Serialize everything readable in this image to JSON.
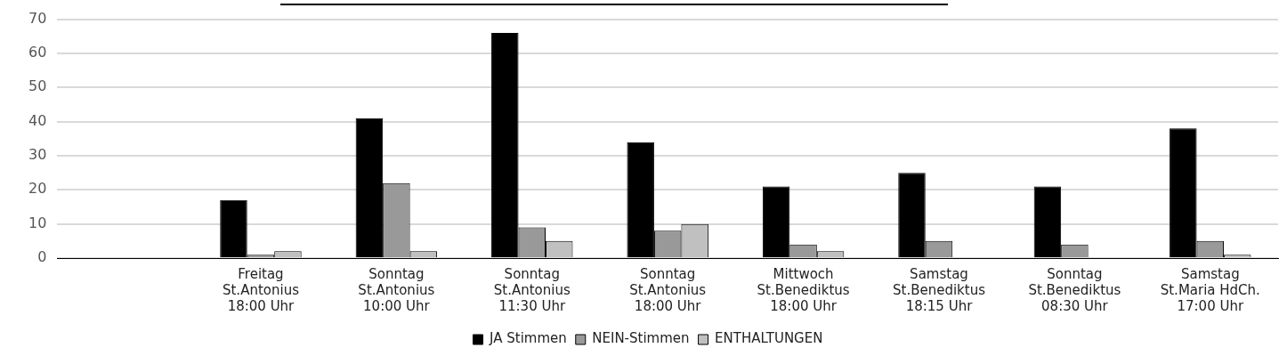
{
  "chart_data": {
    "type": "bar",
    "categories": [
      null,
      "Freitag\nSt.Antonius\n18:00 Uhr",
      "Sonntag\nSt.Antonius\n10:00 Uhr",
      "Sonntag\nSt.Antonius\n11:30 Uhr",
      "Sonntag\nSt.Antonius\n18:00 Uhr",
      "Mittwoch\nSt.Benediktus\n18:00 Uhr",
      "Samstag\nSt.Benediktus\n18:15 Uhr",
      "Sonntag\nSt.Benediktus\n08:30 Uhr",
      "Samstag\nSt.Maria HdCh.\n17:00 Uhr"
    ],
    "series": [
      {
        "name": "JA Stimmen",
        "color": "#000000",
        "values": [
          null,
          17,
          41,
          66,
          34,
          21,
          25,
          21,
          38
        ]
      },
      {
        "name": "NEIN-Stimmen",
        "color": "#999999",
        "values": [
          null,
          1,
          22,
          9,
          8,
          4,
          5,
          4,
          5
        ]
      },
      {
        "name": "ENTHALTUNGEN",
        "color": "#c0c0c0",
        "values": [
          null,
          2,
          2,
          5,
          10,
          2,
          0,
          0,
          1
        ]
      }
    ],
    "ylim": [
      0,
      70
    ],
    "yticks": [
      0,
      10,
      20,
      30,
      40,
      50,
      60,
      70
    ],
    "grid": "y",
    "legend": "bottom"
  }
}
